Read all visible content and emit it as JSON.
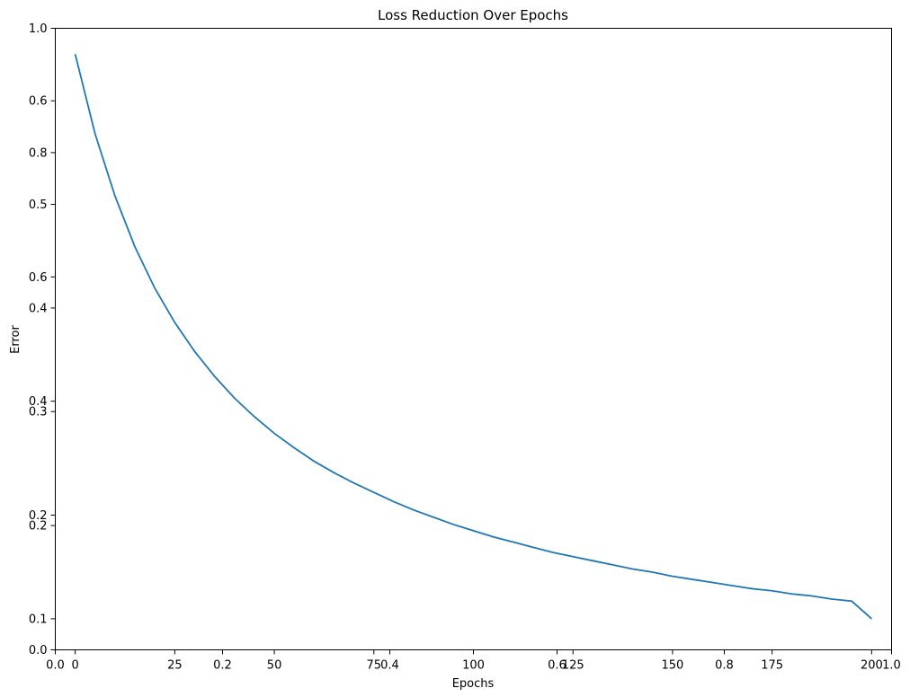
{
  "chart_data": {
    "type": "line",
    "title": "Loss Reduction Over Epochs",
    "xlabel": "Epochs",
    "ylabel": "Error",
    "xlim": [
      -5,
      205
    ],
    "ylim": [
      0.07,
      0.67
    ],
    "grid": false,
    "legend": "none",
    "color": "#1f77b4",
    "series": [
      {
        "x": [
          0,
          5,
          10,
          15,
          20,
          25,
          30,
          35,
          40,
          45,
          50,
          55,
          60,
          65,
          70,
          75,
          80,
          85,
          90,
          95,
          100,
          105,
          110,
          115,
          120,
          125,
          130,
          135,
          140,
          145,
          150,
          155,
          160,
          165,
          170,
          175,
          180,
          185,
          190,
          195,
          200
        ],
        "values": [
          0.645,
          0.568,
          0.508,
          0.459,
          0.419,
          0.386,
          0.358,
          0.334,
          0.313,
          0.295,
          0.279,
          0.265,
          0.252,
          0.241,
          0.231,
          0.222,
          0.213,
          0.205,
          0.198,
          0.191,
          0.185,
          0.179,
          0.174,
          0.169,
          0.164,
          0.16,
          0.156,
          0.152,
          0.148,
          0.145,
          0.141,
          0.138,
          0.135,
          0.132,
          0.129,
          0.127,
          0.124,
          0.122,
          0.119,
          0.117,
          0.1
        ]
      }
    ],
    "x_ticks": [
      0,
      25,
      50,
      75,
      100,
      125,
      150,
      175,
      200
    ],
    "x_tick_labels": [
      "0",
      "25",
      "50",
      "75",
      "100",
      "125",
      "150",
      "175",
      "200"
    ],
    "y_ticks": [
      0.1,
      0.2,
      0.3,
      0.4,
      0.5,
      0.6
    ],
    "y_tick_labels": [
      "0.1",
      "0.2",
      "0.3",
      "0.4",
      "0.5",
      "0.6"
    ],
    "overlay_x_ticks": [
      0.0,
      0.2,
      0.4,
      0.6,
      0.8,
      1.0
    ],
    "overlay_x_tick_labels": [
      "0.0",
      "0.2",
      "0.4",
      "0.6",
      "0.8",
      "1.0"
    ],
    "overlay_y_ticks": [
      0.0,
      0.2,
      0.4,
      0.6,
      0.8,
      1.0
    ],
    "overlay_y_tick_labels": [
      "0.0",
      "0.2",
      "0.4",
      "0.6",
      "0.8",
      "1.0"
    ]
  }
}
